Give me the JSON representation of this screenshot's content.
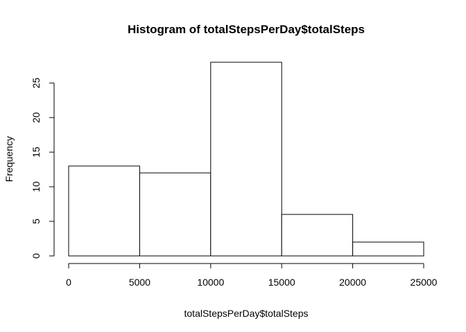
{
  "chart_data": {
    "type": "bar",
    "title": "Histogram of totalStepsPerDay$totalSteps",
    "xlabel": "totalStepsPerDay$totalSteps",
    "ylabel": "Frequency",
    "bins": [
      {
        "start": 0,
        "end": 5000,
        "count": 13
      },
      {
        "start": 5000,
        "end": 10000,
        "count": 12
      },
      {
        "start": 10000,
        "end": 15000,
        "count": 28
      },
      {
        "start": 15000,
        "end": 20000,
        "count": 6
      },
      {
        "start": 20000,
        "end": 25000,
        "count": 2
      }
    ],
    "xlim": [
      0,
      25000
    ],
    "ylim": [
      0,
      28
    ],
    "x_ticks": [
      0,
      5000,
      10000,
      15000,
      20000,
      25000
    ],
    "y_ticks": [
      0,
      5,
      10,
      15,
      20,
      25
    ],
    "grid": false
  }
}
